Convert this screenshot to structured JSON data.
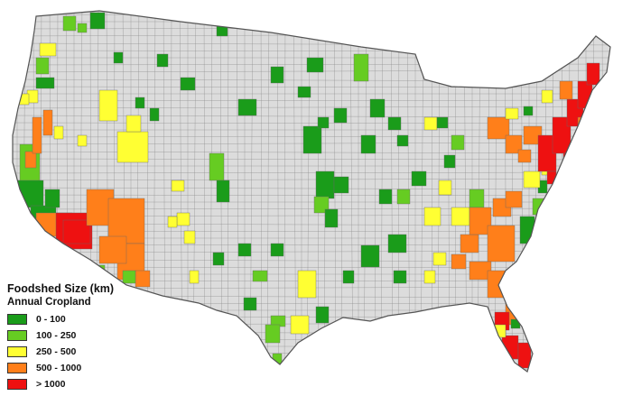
{
  "legend": {
    "title": "Foodshed Size (km)",
    "subtitle": "Annual Cropland",
    "classes": [
      {
        "label": "0 - 100",
        "color": "#1a9c1a"
      },
      {
        "label": "100 - 250",
        "color": "#66cc22"
      },
      {
        "label": "250 - 500",
        "color": "#ffff33"
      },
      {
        "label": "500 - 1000",
        "color": "#ff7f1a"
      },
      {
        "label": "> 1000",
        "color": "#ee1111"
      }
    ]
  },
  "map": {
    "base_color": "#dcdcdc",
    "border_color": "#8a8a8a",
    "region": "conterminous United States counties"
  }
}
